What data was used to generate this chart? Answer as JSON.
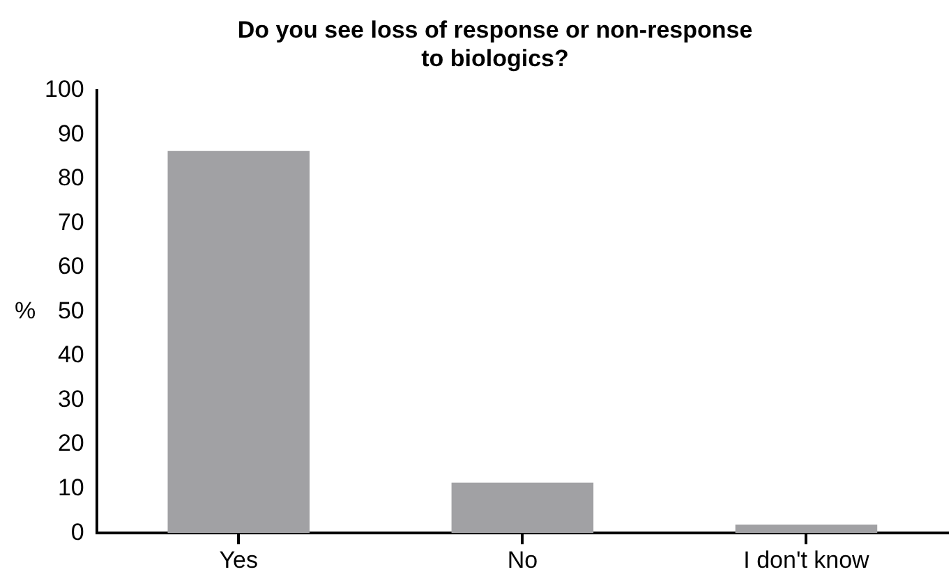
{
  "chart_data": {
    "type": "bar",
    "title": "Do you see loss of response or non-response\nto biologics?",
    "ylabel": "%",
    "categories": [
      "Yes",
      "No",
      "I don't know"
    ],
    "values": [
      86.3,
      11.4,
      1.9
    ],
    "color": "#a1a1a4",
    "ylim": [
      0,
      100
    ],
    "yticks": [
      0,
      10,
      20,
      30,
      40,
      50,
      60,
      70,
      80,
      90,
      100
    ],
    "grid": false,
    "legend": false
  }
}
